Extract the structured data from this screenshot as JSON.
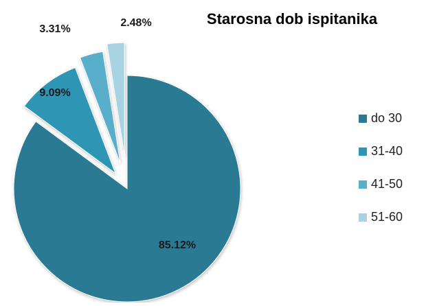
{
  "chart_data": {
    "type": "pie",
    "title": "Starosna dob ispitanika",
    "categories": [
      "do 30",
      "31-40",
      "41-50",
      "51-60"
    ],
    "values": [
      85.12,
      9.09,
      3.31,
      2.48
    ],
    "value_labels": [
      "85.12%",
      "9.09%",
      "3.31%",
      "2.48%"
    ],
    "exploded": true,
    "legend_position": "right",
    "colors": [
      "#2B7A94",
      "#2E96B4",
      "#59AECB",
      "#A8D3E2"
    ]
  }
}
